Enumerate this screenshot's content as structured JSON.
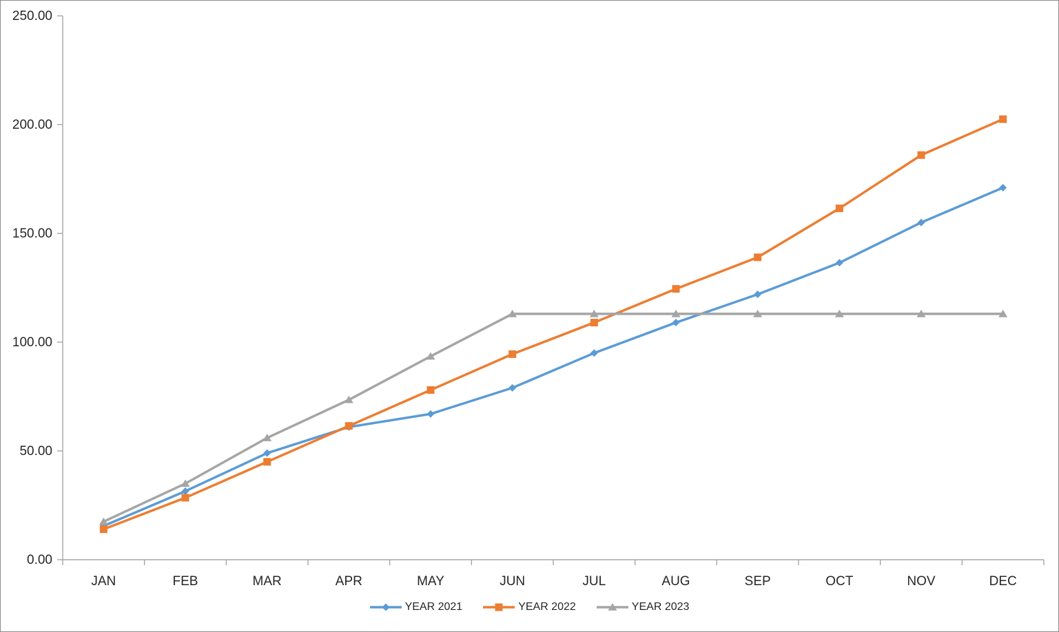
{
  "chart_data": {
    "type": "line",
    "categories": [
      "JAN",
      "FEB",
      "MAR",
      "APR",
      "MAY",
      "JUN",
      "JUL",
      "AUG",
      "SEP",
      "OCT",
      "NOV",
      "DEC"
    ],
    "series": [
      {
        "name": "YEAR 2021",
        "color": "#5B9BD5",
        "marker": "diamond",
        "values": [
          15.5,
          31.5,
          49,
          61,
          67,
          79,
          95,
          109,
          122,
          136.5,
          155,
          171
        ]
      },
      {
        "name": "YEAR 2022",
        "color": "#ED7D31",
        "marker": "square",
        "values": [
          14,
          28.5,
          45,
          61.5,
          78,
          94.5,
          109,
          124.5,
          139,
          161.5,
          186,
          202.5
        ]
      },
      {
        "name": "YEAR 2023",
        "color": "#A5A5A5",
        "marker": "triangle",
        "values": [
          17.5,
          35,
          56,
          73.5,
          93.5,
          113,
          113,
          113,
          113,
          113,
          113,
          113
        ]
      }
    ],
    "title": "",
    "xlabel": "",
    "ylabel": "",
    "ylim": [
      0,
      250
    ],
    "y_ticks": [
      0,
      50,
      100,
      150,
      200,
      250
    ],
    "y_tick_labels": [
      "0.00",
      "50.00",
      "100.00",
      "150.00",
      "200.00",
      "250.00"
    ],
    "grid": false,
    "legend_position": "bottom-center"
  },
  "colors": {
    "axis": "#A6A6A6",
    "text": "#262626",
    "border": "#8C8C8C",
    "background": "#FFFFFF"
  }
}
